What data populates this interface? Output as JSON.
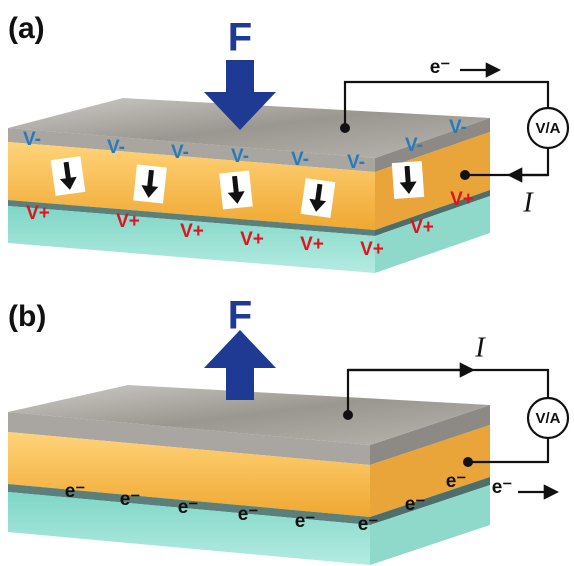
{
  "panels": [
    {
      "label": "(a)",
      "force": "F",
      "meter": "V/A",
      "electron": "e⁻",
      "current": "I",
      "top_charges": [
        "V-",
        "V-",
        "V-",
        "V-",
        "V-",
        "V-",
        "V-",
        "V-"
      ],
      "bottom_charges": [
        "V+",
        "V+",
        "V+",
        "V+",
        "V+",
        "V+",
        "V+",
        "V+"
      ]
    },
    {
      "label": "(b)",
      "force": "F",
      "meter": "V/A",
      "electron": "e⁻",
      "current": "I",
      "layer_electrons": [
        "e⁻",
        "e⁻",
        "e⁻",
        "e⁻",
        "e⁻",
        "e⁻",
        "e⁻",
        "e⁻"
      ]
    }
  ]
}
